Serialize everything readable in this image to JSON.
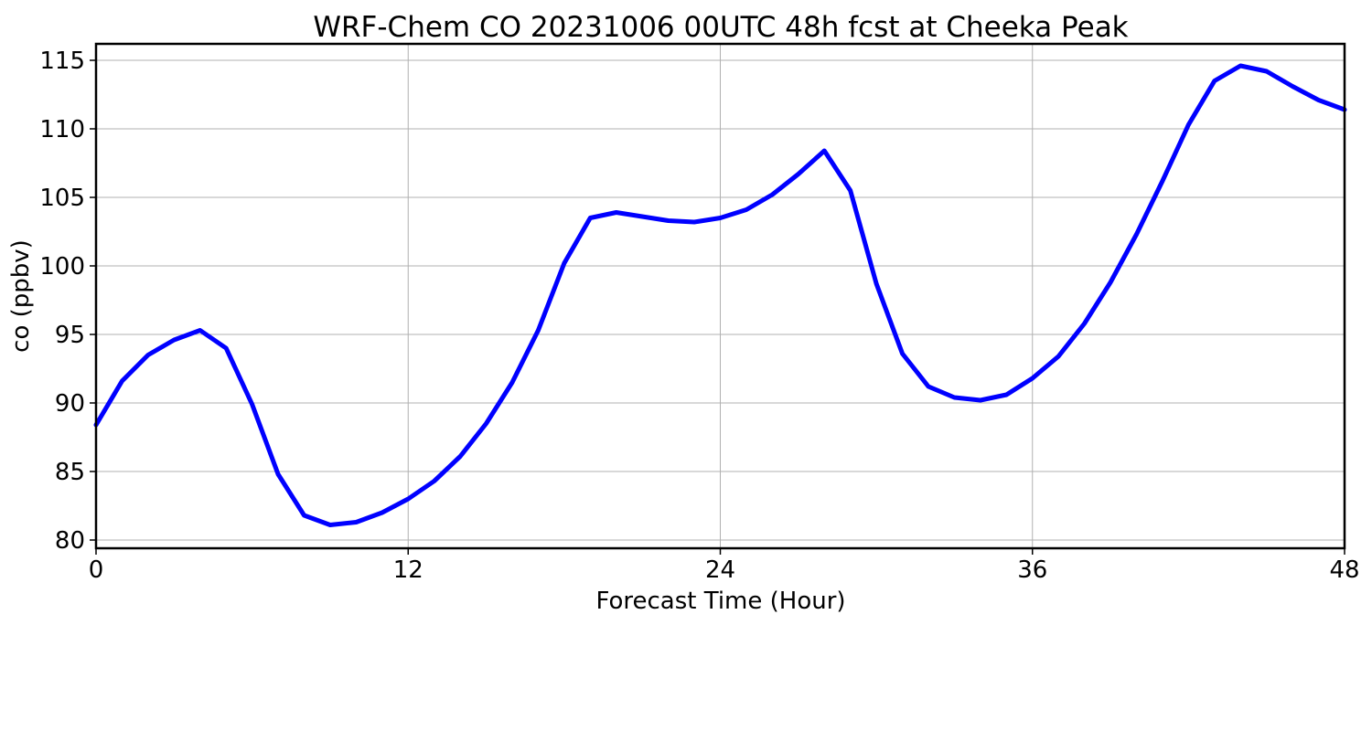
{
  "chart_data": {
    "type": "line",
    "title": "WRF-Chem CO  20231006 00UTC 48h fcst at Cheeka Peak",
    "xlabel": "Forecast Time (Hour)",
    "ylabel": "co  (ppbv)",
    "xlim": [
      0,
      48
    ],
    "ylim": [
      79.4,
      116.2
    ],
    "xticks": [
      0,
      12,
      24,
      36,
      48
    ],
    "yticks": [
      80,
      85,
      90,
      95,
      100,
      105,
      110,
      115
    ],
    "grid": true,
    "x": [
      0,
      1,
      2,
      3,
      4,
      5,
      6,
      7,
      8,
      9,
      10,
      11,
      12,
      13,
      14,
      15,
      16,
      17,
      18,
      19,
      20,
      21,
      22,
      23,
      24,
      25,
      26,
      27,
      28,
      29,
      30,
      31,
      32,
      33,
      34,
      35,
      36,
      37,
      38,
      39,
      40,
      41,
      42,
      43,
      44,
      45,
      46,
      47,
      48
    ],
    "series": [
      {
        "color": "#0000ff",
        "values": [
          88.4,
          91.6,
          93.5,
          94.6,
          95.3,
          94.0,
          89.9,
          84.8,
          81.8,
          81.1,
          81.3,
          82.0,
          83.0,
          84.3,
          86.1,
          88.5,
          91.5,
          95.3,
          100.2,
          103.5,
          103.9,
          103.6,
          103.3,
          103.2,
          103.5,
          104.1,
          105.2,
          106.7,
          108.4,
          105.5,
          98.7,
          93.6,
          91.2,
          90.4,
          90.2,
          90.6,
          91.8,
          93.4,
          95.8,
          98.8,
          102.3,
          106.2,
          110.3,
          113.5,
          114.6,
          114.2,
          113.1,
          112.1,
          111.4
        ]
      }
    ]
  }
}
